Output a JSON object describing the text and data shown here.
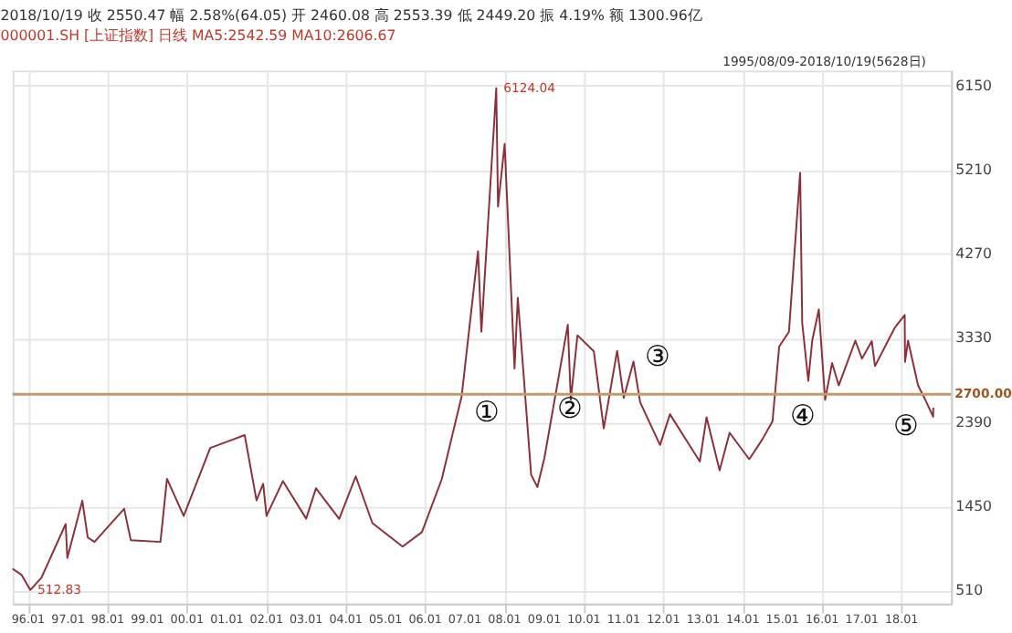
{
  "chart_data": {
    "type": "line",
    "title": "2018/10/19 收 2550.47 幅 2.58%(64.05) 开 2460.08 高 2553.39 低 2449.20 振 4.19% 额 1300.96亿",
    "subtitle": "000001.SH [上证指数] 日线 MA5:2542.59 MA10:2606.67",
    "x": [
      "1995-08-09",
      "1995-11",
      "1996-01-19",
      "1996-05",
      "1996-12-10",
      "1996-12-25",
      "1997-05-12",
      "1997-07",
      "1997-09",
      "1998-06",
      "1998-08",
      "1999-05",
      "1999-06-30",
      "1999-12",
      "2000-08",
      "2001-06-14",
      "2001-10",
      "2001-12",
      "2002-01",
      "2002-06",
      "2003-01",
      "2003-04",
      "2003-11",
      "2004-04",
      "2004-09",
      "2005-06-06",
      "2005-12",
      "2006-06",
      "2006-12",
      "2007-05",
      "2007-06",
      "2007-10-16",
      "2007-11",
      "2008-01",
      "2008-04",
      "2008-05",
      "2008-09",
      "2008-10-28",
      "2009-01",
      "2009-08-04",
      "2009-09",
      "2009-11",
      "2010-04",
      "2010-07",
      "2010-11",
      "2011-01",
      "2011-04",
      "2011-06",
      "2011-12",
      "2012-03",
      "2012-12",
      "2013-02",
      "2013-06",
      "2013-09",
      "2014-03",
      "2014-07",
      "2014-10",
      "2014-12",
      "2015-03",
      "2015-06-12",
      "2015-07",
      "2015-08-26",
      "2015-10",
      "2015-12",
      "2016-01-28",
      "2016-04",
      "2016-06",
      "2016-11",
      "2017-01",
      "2017-04",
      "2017-05",
      "2017-11",
      "2018-01-29",
      "2018-02",
      "2018-03",
      "2018-06",
      "2018-08",
      "2018-10-18",
      "2018-10-19"
    ],
    "series": [
      {
        "color": "#8c2f39",
        "values": [
          750,
          680,
          512.83,
          650,
          1250,
          870,
          1510,
          1100,
          1050,
          1420,
          1070,
          1050,
          1756,
          1340,
          2100,
          2245,
          1514,
          1700,
          1340,
          1730,
          1310,
          1650,
          1307,
          1783,
          1260,
          998,
          1160,
          1750,
          2675,
          4300,
          3400,
          6124.04,
          4800,
          5500,
          2990,
          3780,
          1800,
          1664,
          1990,
          3478,
          2640,
          3360,
          3180,
          2319,
          3186,
          2660,
          3067,
          2610,
          2134,
          2478,
          1949,
          2444,
          1849,
          2270,
          1974,
          2200,
          2400,
          3234,
          3400,
          5178,
          3500,
          2850,
          3300,
          3650,
          2638,
          3050,
          2800,
          3300,
          3100,
          3295,
          3016,
          3450,
          3587,
          3062,
          3300,
          2800,
          2653,
          2449,
          2550.47
        ]
      }
    ],
    "xlim": [
      "1995-08-09",
      "2019-04-01"
    ],
    "xticks": [
      {
        "value": "1996-01",
        "label": "96.01"
      },
      {
        "value": "1997-01",
        "label": "97.01"
      },
      {
        "value": "1998-01",
        "label": "98.01"
      },
      {
        "value": "1999-01",
        "label": "99.01"
      },
      {
        "value": "2000-01",
        "label": "00.01"
      },
      {
        "value": "2001-01",
        "label": "01.01"
      },
      {
        "value": "2002-01",
        "label": "02.01"
      },
      {
        "value": "2003-01",
        "label": "03.01"
      },
      {
        "value": "2004-01",
        "label": "04.01"
      },
      {
        "value": "2005-01",
        "label": "05.01"
      },
      {
        "value": "2006-01",
        "label": "06.01"
      },
      {
        "value": "2007-01",
        "label": "07.01"
      },
      {
        "value": "2008-01",
        "label": "08.01"
      },
      {
        "value": "2009-01",
        "label": "09.01"
      },
      {
        "value": "2010-01",
        "label": "10.01"
      },
      {
        "value": "2011-01",
        "label": "11.01"
      },
      {
        "value": "2012-01",
        "label": "12.01"
      },
      {
        "value": "2013-01",
        "label": "13.01"
      },
      {
        "value": "2014-01",
        "label": "14.01"
      },
      {
        "value": "2015-01",
        "label": "15.01"
      },
      {
        "value": "2016-01",
        "label": "16.01"
      },
      {
        "value": "2017-01",
        "label": "17.01"
      },
      {
        "value": "2018-01",
        "label": "18.01"
      }
    ],
    "ylim": [
      360,
      6320
    ],
    "yticks": [
      510,
      1450,
      2390,
      3330,
      4270,
      5210,
      6150
    ],
    "grid": true,
    "marker": "none",
    "line_style": "solid",
    "ref_lines": [
      {
        "axis": "y",
        "value": 2700,
        "label": "2700.00",
        "color": "#c49a6c"
      }
    ],
    "annotations": [
      "1995/08/09-2018/10/19(5628日)",
      {
        "text": "6124.04",
        "x": "2007-10-16",
        "y": 6124.04
      },
      {
        "text": "512.83",
        "x": "1996-01-19",
        "y": 512.83
      },
      "①",
      "②",
      "③",
      "④",
      "⑤"
    ]
  }
}
